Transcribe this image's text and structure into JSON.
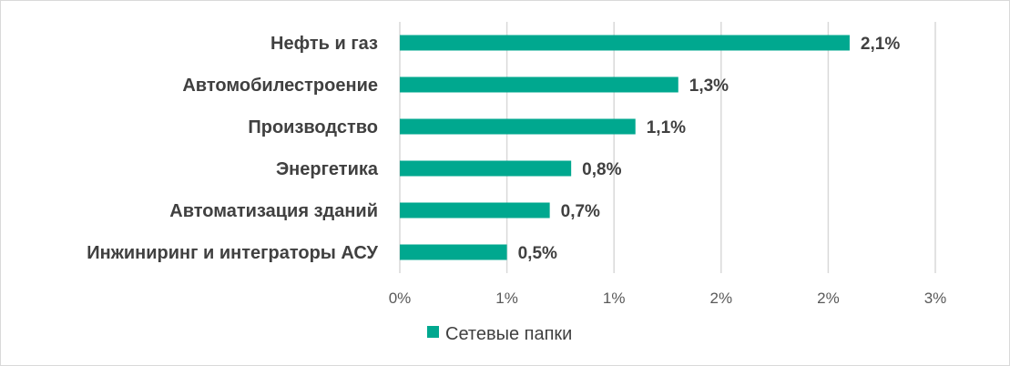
{
  "chart_data": {
    "type": "bar",
    "orientation": "horizontal",
    "categories": [
      "Нефть и газ",
      "Автомобилестроение",
      "Производство",
      "Энергетика",
      "Автоматизация зданий",
      "Инжиниринг и интеграторы АСУ"
    ],
    "series": [
      {
        "name": "Сетевые папки",
        "values": [
          2.1,
          1.3,
          1.1,
          0.8,
          0.7,
          0.5
        ],
        "labels": [
          "2,1%",
          "1,3%",
          "1,1%",
          "0,8%",
          "0,7%",
          "0,5%"
        ],
        "color": "#00a88f"
      }
    ],
    "x_ticks": [
      "0%",
      "1%",
      "1%",
      "2%",
      "2%",
      "3%"
    ],
    "x_tick_values": [
      0,
      0.5,
      1.0,
      1.5,
      2.0,
      2.5
    ],
    "xlim": [
      0,
      2.5
    ],
    "grid": "vertical",
    "legend": "bottom"
  },
  "colors": {
    "bar": "#00a88f",
    "grid": "#d9d9d9",
    "text": "#404040"
  }
}
